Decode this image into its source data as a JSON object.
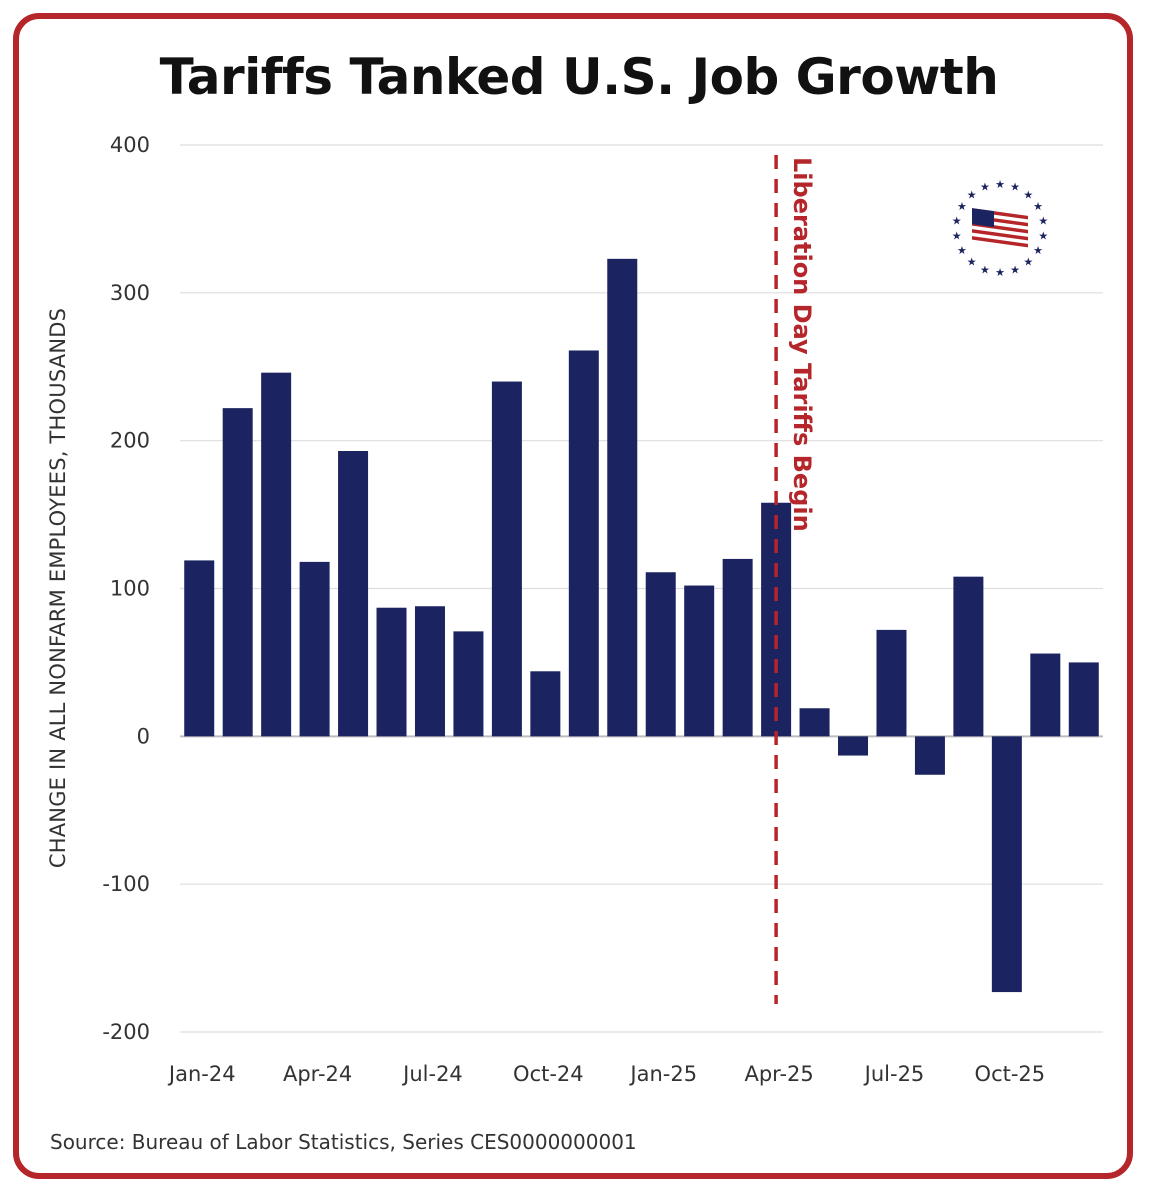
{
  "chart_data": {
    "type": "bar",
    "title": "Tariffs Tanked U.S. Job Growth",
    "ylabel": "CHANGE IN ALL NONFARM EMPLOYEES, THOUSANDS",
    "xlabel": "",
    "ylim": [
      -200,
      400
    ],
    "yticks": [
      400,
      300,
      200,
      100,
      0,
      -100,
      -200
    ],
    "grid": true,
    "months": [
      "Jan-24",
      "Feb-24",
      "Mar-24",
      "Apr-24",
      "May-24",
      "Jun-24",
      "Jul-24",
      "Aug-24",
      "Sep-24",
      "Oct-24",
      "Nov-24",
      "Dec-24",
      "Jan-25",
      "Feb-25",
      "Mar-25",
      "Apr-25",
      "May-25",
      "Jun-25",
      "Jul-25",
      "Aug-25",
      "Sep-25",
      "Oct-25",
      "Nov-25",
      "Dec-25"
    ],
    "values": [
      119,
      222,
      246,
      118,
      193,
      87,
      88,
      71,
      240,
      44,
      261,
      323,
      111,
      102,
      120,
      158,
      19,
      -13,
      72,
      -26,
      108,
      -173,
      56,
      50
    ],
    "xtick_labels": [
      "Jan-24",
      "Apr-24",
      "Jul-24",
      "Oct-24",
      "Jan-25",
      "Apr-25",
      "Jul-25",
      "Oct-25"
    ],
    "xtick_month_index": [
      0,
      3,
      6,
      9,
      12,
      15,
      18,
      21
    ],
    "bar_color": "#1b2360",
    "annotation": {
      "text": "Liberation Day Tariffs Begin",
      "at_month_index": 15.5,
      "color": "#b5262a"
    },
    "source": "Source: Bureau of Labor Statistics, Series CES0000000001"
  },
  "logo": {
    "icon": "us-flag-stars-icon",
    "colors": {
      "red": "#b5262a",
      "blue": "#1b2360"
    }
  }
}
